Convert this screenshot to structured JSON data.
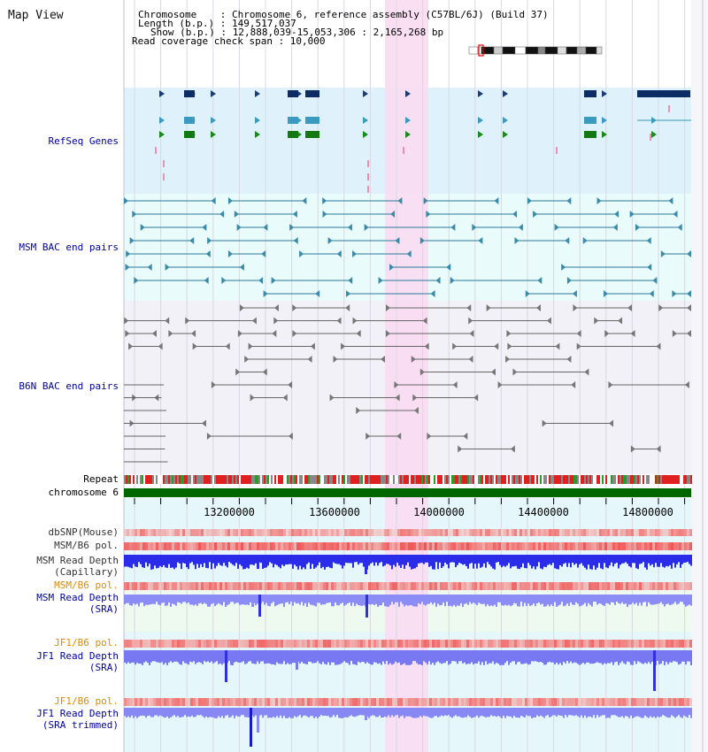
{
  "title": "Map View",
  "header": {
    "line1": "Chromosome    : Chromosome 6, reference assembly (C57BL/6J) (Build 37)",
    "line2": "Length (b.p.) : 149,517,037",
    "line3": "Show (b.p.) : 12,888,039-15,053,306 : 2,165,268 bp",
    "line4": "Read coverage check span : 10,000"
  },
  "tracks": {
    "refseq": "RefSeq Genes",
    "msm_bac": "MSM BAC end pairs",
    "b6n_bac": "B6N BAC end pairs",
    "repeat": "Repeat",
    "chromosome": "chromosome 6",
    "dbsnp": "dbSNP(Mouse)",
    "msm_b6_pol": "MSM/B6 pol.",
    "msm_depth_cap_1": "MSM Read Depth",
    "msm_depth_cap_2": "(Capillary)",
    "msm_b6_pol_sra": "MSM/B6 pol.",
    "msm_depth_sra_1": "MSM Read Depth",
    "msm_depth_sra_2": "(SRA)",
    "jf1_b6_pol": "JF1/B6 pol.",
    "jf1_depth_sra_1": "JF1 Read Depth",
    "jf1_depth_sra_2": "(SRA)",
    "jf1_b6_pol_trim": "JF1/B6 pol.",
    "jf1_depth_trim_1": "JF1 Read Depth",
    "jf1_depth_trim_2": "(SRA trimmed)"
  },
  "axis": {
    "ticks": [
      "13200000",
      "13600000",
      "14000000",
      "14400000",
      "14800000"
    ]
  },
  "colors": {
    "refseq_bg": "#dff2fb",
    "msm_bg": "#e9fbfb",
    "b6n_bg": "#f1f1f7",
    "highlight": "#fadcf2",
    "label_blue": "#00009c",
    "label_orange": "#e08a00",
    "depth_blue": "#2a2ae8",
    "depth_light": "#8a8af5",
    "chromosome_green": "#006600"
  }
}
